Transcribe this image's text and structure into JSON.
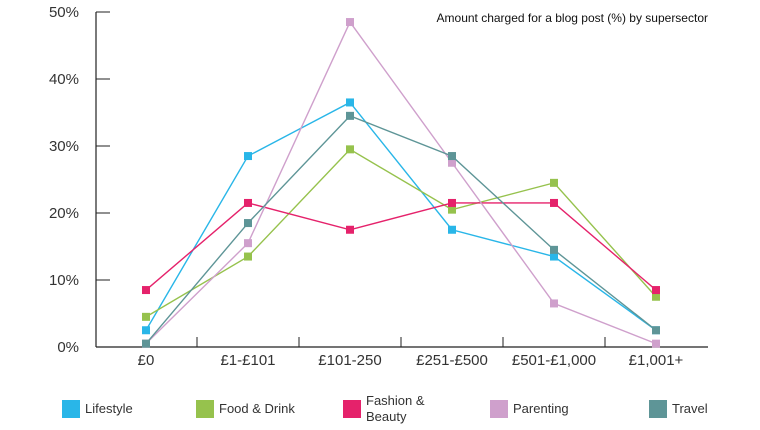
{
  "chart_data": {
    "type": "line",
    "title": "Amount charged for a blog post (%) by supersector",
    "xlabel": "",
    "ylabel": "",
    "categories": [
      "£0",
      "£1-£101",
      "£101-250",
      "£251-£500",
      "£501-£1,000",
      "£1,001+"
    ],
    "ylim": [
      0,
      50
    ],
    "yticks": [
      "0%",
      "10%",
      "20%",
      "30%",
      "40%",
      "50%"
    ],
    "grid": false,
    "legend_position": "bottom",
    "series": [
      {
        "name": "Lifestyle",
        "color": "#29b6e8",
        "values": [
          2.5,
          28.5,
          36.5,
          17.5,
          13.5,
          2.5
        ]
      },
      {
        "name": "Food & Drink",
        "color": "#96c24d",
        "values": [
          4.5,
          13.5,
          29.5,
          20.5,
          24.5,
          7.5
        ]
      },
      {
        "name": "Fashion & Beauty",
        "color": "#e5226b",
        "values": [
          8.5,
          21.5,
          17.5,
          21.5,
          21.5,
          8.5
        ]
      },
      {
        "name": "Parenting",
        "color": "#cfa0cc",
        "values": [
          0.5,
          15.5,
          48.5,
          27.5,
          6.5,
          0.5
        ]
      },
      {
        "name": "Travel",
        "color": "#5e9597",
        "values": [
          0.5,
          18.5,
          34.5,
          28.5,
          14.5,
          2.5
        ]
      }
    ]
  }
}
